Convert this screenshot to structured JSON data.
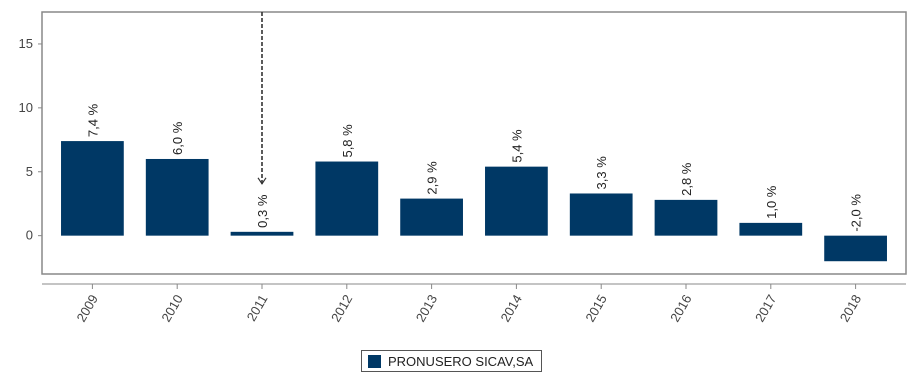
{
  "chart_data": {
    "type": "bar",
    "categories": [
      "2009",
      "2010",
      "2011",
      "2012",
      "2013",
      "2014",
      "2015",
      "2016",
      "2017",
      "2018"
    ],
    "series": [
      {
        "name": "PRONUSERO SICAV,SA",
        "values": [
          7.4,
          6.0,
          0.3,
          5.8,
          2.9,
          5.4,
          3.3,
          2.8,
          1.0,
          -2.0
        ],
        "labels": [
          "7,4 %",
          "6,0 %",
          "0,3 %",
          "5,8 %",
          "2,9 %",
          "5,4 %",
          "3,3 %",
          "2,8 %",
          "1,0 %",
          "-2,0 %"
        ]
      }
    ],
    "yticks": [
      0,
      5,
      10,
      15
    ],
    "ylim": [
      -3,
      17.5
    ],
    "grid": false,
    "legend": "bottom-center",
    "bar_color": "#003865",
    "marker_category": "2011"
  }
}
